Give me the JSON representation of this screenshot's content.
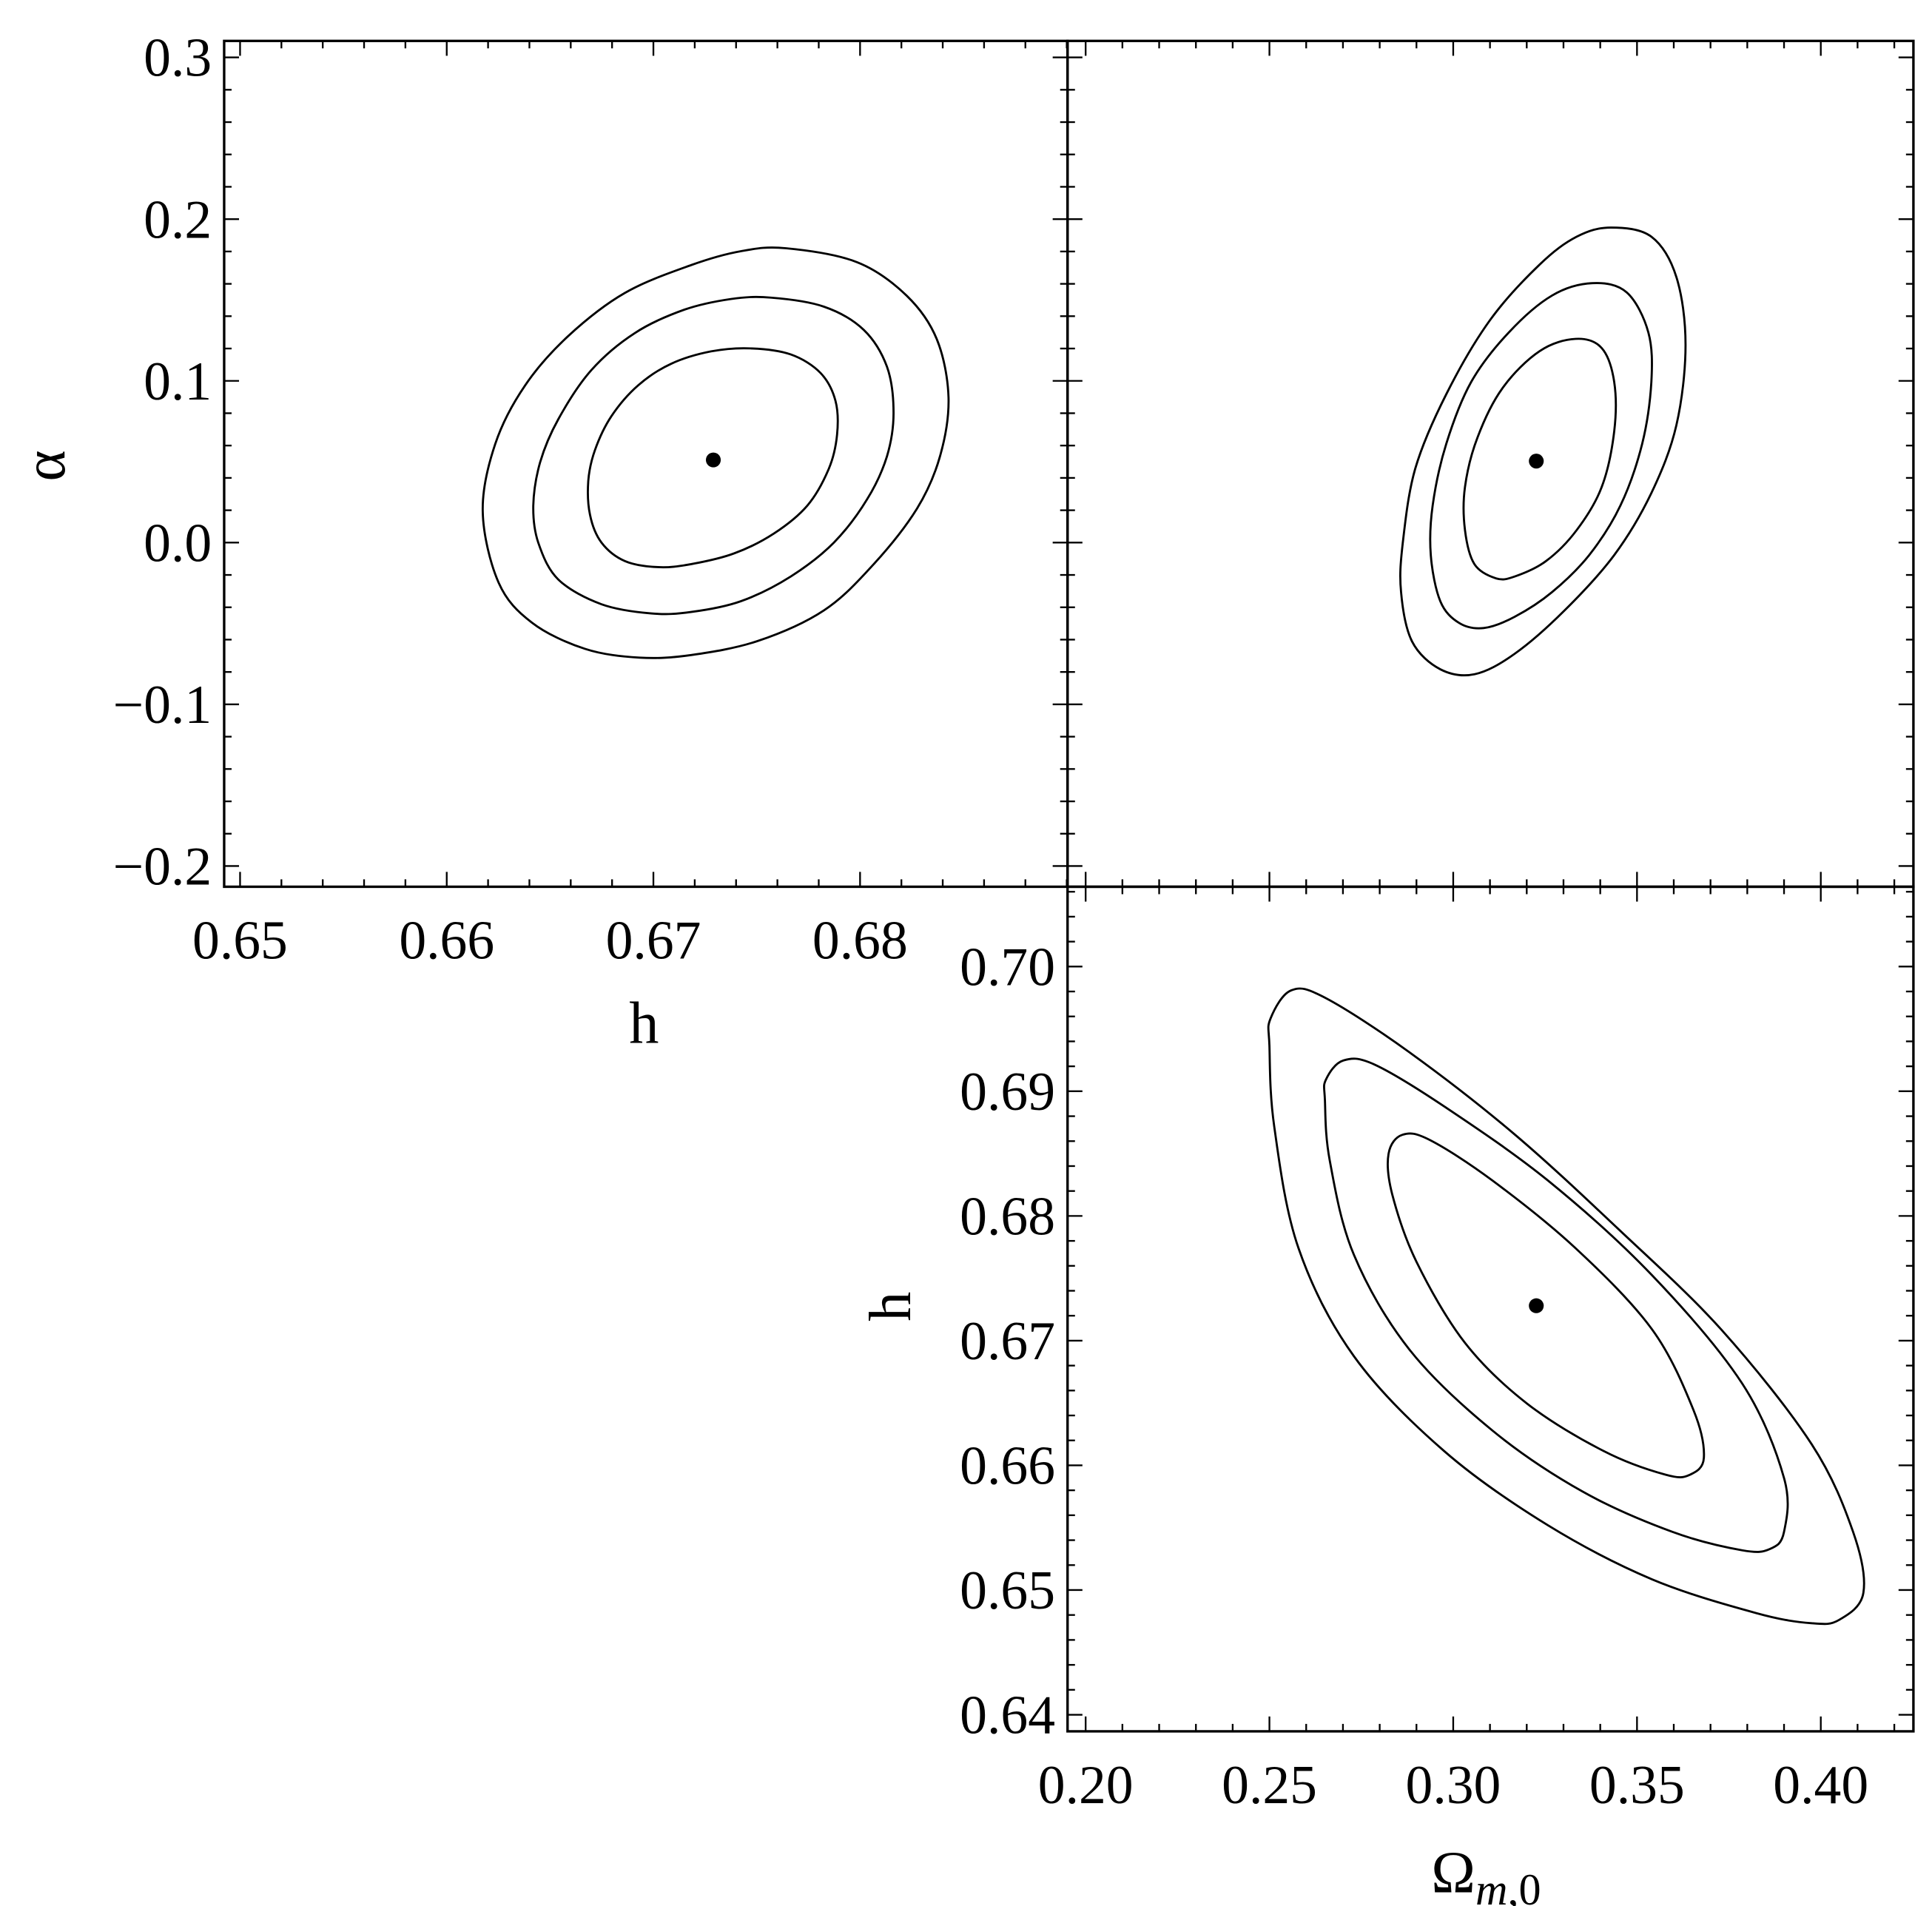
{
  "figure": {
    "title": "",
    "type": "triangle contour plot"
  },
  "chart_data": [
    {
      "type": "contour",
      "panel": "top-left",
      "title": "",
      "xlabel": "h",
      "ylabel": "α",
      "xlim": [
        0.64923,
        0.69004
      ],
      "ylim": [
        -0.2128,
        0.3102
      ],
      "x_ticks": [
        0.65,
        0.66,
        0.67,
        0.68
      ],
      "x_tick_labels": [
        "0.65",
        "0.66",
        "0.67",
        "0.68"
      ],
      "x_minor_step": 0.002,
      "y_ticks": [
        -0.2,
        -0.1,
        0.0,
        0.1,
        0.2,
        0.3
      ],
      "y_tick_labels": [
        "−0.2",
        "−0.1",
        "0.0",
        "0.1",
        "0.2",
        "0.3"
      ],
      "y_minor_step": 0.02,
      "show_x_labels": true,
      "show_y_labels": true,
      "grid": false,
      "best_fit": [
        0.6729,
        0.0511
      ],
      "contours": [
        {
          "name": "1σ",
          "points": [
            [
              0.67472,
              0.1201
            ],
            [
              0.67665,
              0.1163
            ],
            [
              0.67809,
              0.1048
            ],
            [
              0.67881,
              0.0877
            ],
            [
              0.67889,
              0.0668
            ],
            [
              0.67849,
              0.0458
            ],
            [
              0.67745,
              0.0229
            ],
            [
              0.67584,
              0.0057
            ],
            [
              0.67391,
              -0.0067
            ],
            [
              0.67183,
              -0.0133
            ],
            [
              0.67022,
              -0.0152
            ],
            [
              0.66862,
              -0.0114
            ],
            [
              0.66749,
              0.0
            ],
            [
              0.66693,
              0.0172
            ],
            [
              0.66685,
              0.0381
            ],
            [
              0.66717,
              0.0572
            ],
            [
              0.66797,
              0.0782
            ],
            [
              0.66926,
              0.0972
            ],
            [
              0.67086,
              0.1106
            ],
            [
              0.67279,
              0.1182
            ]
          ]
        },
        {
          "name": "2σ",
          "points": [
            [
              0.67568,
              0.1515
            ],
            [
              0.67825,
              0.1459
            ],
            [
              0.68018,
              0.1315
            ],
            [
              0.6813,
              0.1087
            ],
            [
              0.68162,
              0.0801
            ],
            [
              0.6813,
              0.0534
            ],
            [
              0.68034,
              0.0267
            ],
            [
              0.67873,
              0.0
            ],
            [
              0.67665,
              -0.0209
            ],
            [
              0.67424,
              -0.0362
            ],
            [
              0.67183,
              -0.0429
            ],
            [
              0.6699,
              -0.0438
            ],
            [
              0.66749,
              -0.0381
            ],
            [
              0.6654,
              -0.0228
            ],
            [
              0.66443,
              0.0
            ],
            [
              0.66419,
              0.0229
            ],
            [
              0.66452,
              0.0496
            ],
            [
              0.6654,
              0.0763
            ],
            [
              0.667,
              0.1067
            ],
            [
              0.6691,
              0.1296
            ],
            [
              0.6715,
              0.144
            ],
            [
              0.67375,
              0.1506
            ]
          ]
        },
        {
          "name": "3σ",
          "points": [
            [
              0.67641,
              0.182
            ],
            [
              0.67986,
              0.1734
            ],
            [
              0.68227,
              0.1525
            ],
            [
              0.68371,
              0.1258
            ],
            [
              0.68428,
              0.0896
            ],
            [
              0.68387,
              0.0534
            ],
            [
              0.68275,
              0.021
            ],
            [
              0.68066,
              -0.0133
            ],
            [
              0.67825,
              -0.0419
            ],
            [
              0.67504,
              -0.0609
            ],
            [
              0.67183,
              -0.0695
            ],
            [
              0.66933,
              -0.0711
            ],
            [
              0.66669,
              -0.0657
            ],
            [
              0.66412,
              -0.0495
            ],
            [
              0.66251,
              -0.0247
            ],
            [
              0.66174,
              0.0191
            ],
            [
              0.66235,
              0.061
            ],
            [
              0.66379,
              0.0972
            ],
            [
              0.66588,
              0.1277
            ],
            [
              0.66862,
              0.1544
            ],
            [
              0.67183,
              0.1716
            ],
            [
              0.67424,
              0.1802
            ]
          ]
        }
      ]
    },
    {
      "type": "contour",
      "panel": "top-right",
      "title": "",
      "xlabel": "",
      "ylabel": "",
      "xlim": [
        0.19508,
        0.4252
      ],
      "ylim": [
        -0.2128,
        0.3102
      ],
      "x_ticks": [
        0.2,
        0.25,
        0.3,
        0.35,
        0.4
      ],
      "x_tick_labels": [],
      "x_minor_step": 0.01,
      "y_ticks": [
        -0.2,
        -0.1,
        0.0,
        0.1,
        0.2,
        0.3
      ],
      "y_tick_labels": [],
      "y_minor_step": 0.02,
      "show_x_labels": false,
      "show_y_labels": false,
      "grid": false,
      "best_fit": [
        0.3226,
        0.0504
      ],
      "contours": [
        {
          "name": "1σ",
          "points": [
            [
              0.3333,
              0.126
            ],
            [
              0.3404,
              0.1203
            ],
            [
              0.3438,
              0.0993
            ],
            [
              0.3438,
              0.0688
            ],
            [
              0.3404,
              0.0344
            ],
            [
              0.3336,
              0.0077
            ],
            [
              0.3252,
              -0.0115
            ],
            [
              0.3167,
              -0.021
            ],
            [
              0.3117,
              -0.0221
            ],
            [
              0.3058,
              -0.0134
            ],
            [
              0.3032,
              0.0077
            ],
            [
              0.3032,
              0.0344
            ],
            [
              0.3066,
              0.0649
            ],
            [
              0.3134,
              0.0955
            ],
            [
              0.3235,
              0.1184
            ]
          ]
        },
        {
          "name": "2σ",
          "points": [
            [
              0.3379,
              0.1604
            ],
            [
              0.3472,
              0.1547
            ],
            [
              0.3531,
              0.1299
            ],
            [
              0.3539,
              0.0993
            ],
            [
              0.3514,
              0.0611
            ],
            [
              0.3455,
              0.0229
            ],
            [
              0.337,
              -0.0077
            ],
            [
              0.3269,
              -0.0306
            ],
            [
              0.3167,
              -0.0459
            ],
            [
              0.3083,
              -0.0528
            ],
            [
              0.3016,
              -0.0497
            ],
            [
              0.2965,
              -0.0363
            ],
            [
              0.2939,
              -0.0077
            ],
            [
              0.2944,
              0.0229
            ],
            [
              0.2981,
              0.0611
            ],
            [
              0.3049,
              0.0993
            ],
            [
              0.3151,
              0.1299
            ],
            [
              0.3269,
              0.1528
            ]
          ]
        },
        {
          "name": "3σ",
          "points": [
            [
              0.3429,
              0.1948
            ],
            [
              0.3539,
              0.1891
            ],
            [
              0.3607,
              0.1642
            ],
            [
              0.3632,
              0.1222
            ],
            [
              0.3607,
              0.0726
            ],
            [
              0.3539,
              0.0306
            ],
            [
              0.3438,
              -0.0077
            ],
            [
              0.3303,
              -0.042
            ],
            [
              0.3167,
              -0.0688
            ],
            [
              0.3058,
              -0.0814
            ],
            [
              0.2965,
              -0.0783
            ],
            [
              0.2888,
              -0.0612
            ],
            [
              0.2858,
              -0.0306
            ],
            [
              0.2863,
              0.0
            ],
            [
              0.2897,
              0.0459
            ],
            [
              0.2981,
              0.0917
            ],
            [
              0.31,
              0.1375
            ],
            [
              0.3235,
              0.1719
            ],
            [
              0.3336,
              0.1891
            ]
          ]
        }
      ]
    },
    {
      "type": "contour",
      "panel": "bottom-right",
      "title": "",
      "xlabel": "Ω_{m,0}",
      "ylabel": "h",
      "xlim": [
        0.19508,
        0.4252
      ],
      "ylim": [
        0.63867,
        0.7064
      ],
      "x_ticks": [
        0.2,
        0.25,
        0.3,
        0.35,
        0.4
      ],
      "x_tick_labels": [
        "0.20",
        "0.25",
        "0.30",
        "0.35",
        "0.40"
      ],
      "x_minor_step": 0.01,
      "y_ticks": [
        0.64,
        0.65,
        0.66,
        0.67,
        0.68,
        0.69,
        0.7
      ],
      "y_tick_labels": [
        "0.64",
        "0.65",
        "0.66",
        "0.67",
        "0.68",
        "0.69",
        "0.70"
      ],
      "y_minor_step": 0.002,
      "show_x_labels": true,
      "show_y_labels": true,
      "grid": false,
      "best_fit": [
        0.3226,
        0.6728
      ],
      "contours": [
        {
          "name": "1σ",
          "points": [
            [
              0.2824,
              0.68499
            ],
            [
              0.2862,
              0.68651
            ],
            [
              0.2937,
              0.68608
            ],
            [
              0.3107,
              0.68283
            ],
            [
              0.3333,
              0.67741
            ],
            [
              0.3541,
              0.6709
            ],
            [
              0.3654,
              0.66441
            ],
            [
              0.3682,
              0.66062
            ],
            [
              0.3644,
              0.65925
            ],
            [
              0.3578,
              0.65925
            ],
            [
              0.3409,
              0.66115
            ],
            [
              0.3201,
              0.66495
            ],
            [
              0.3032,
              0.66982
            ],
            [
              0.29,
              0.67633
            ],
            [
              0.2834,
              0.68175
            ]
          ]
        },
        {
          "name": "2σ",
          "points": [
            [
              0.2654,
              0.69095
            ],
            [
              0.2701,
              0.69247
            ],
            [
              0.2786,
              0.69214
            ],
            [
              0.2975,
              0.68879
            ],
            [
              0.3258,
              0.68283
            ],
            [
              0.3541,
              0.67524
            ],
            [
              0.3786,
              0.66657
            ],
            [
              0.39,
              0.65899
            ],
            [
              0.39,
              0.65466
            ],
            [
              0.3862,
              0.6533
            ],
            [
              0.3786,
              0.65319
            ],
            [
              0.3597,
              0.65466
            ],
            [
              0.3352,
              0.6579
            ],
            [
              0.3107,
              0.66278
            ],
            [
              0.2881,
              0.66928
            ],
            [
              0.273,
              0.67686
            ],
            [
              0.2664,
              0.68445
            ],
            [
              0.2651,
              0.68932
            ]
          ]
        },
        {
          "name": "3σ",
          "points": [
            [
              0.2503,
              0.69583
            ],
            [
              0.256,
              0.6981
            ],
            [
              0.2654,
              0.69746
            ],
            [
              0.2881,
              0.69312
            ],
            [
              0.3164,
              0.68662
            ],
            [
              0.3446,
              0.67904
            ],
            [
              0.3729,
              0.6709
            ],
            [
              0.3975,
              0.6617
            ],
            [
              0.4088,
              0.65466
            ],
            [
              0.4116,
              0.64978
            ],
            [
              0.405,
              0.64761
            ],
            [
              0.3975,
              0.64734
            ],
            [
              0.3824,
              0.64815
            ],
            [
              0.3541,
              0.65086
            ],
            [
              0.3258,
              0.65519
            ],
            [
              0.2975,
              0.66115
            ],
            [
              0.273,
              0.66874
            ],
            [
              0.2579,
              0.67741
            ],
            [
              0.2513,
              0.68716
            ],
            [
              0.25,
              0.69366
            ]
          ]
        }
      ]
    }
  ],
  "labels": {
    "alpha_label": "α",
    "h_label_top": "h",
    "h_label_bottom": "h",
    "omega_label": "Ω",
    "omega_sub_italic": "m",
    "omega_sub_rest": ",0"
  }
}
